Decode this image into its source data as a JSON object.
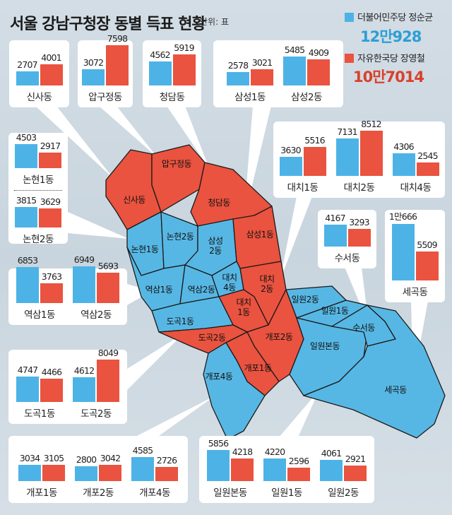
{
  "title": "서울 강남구청장 동별 득표 현황",
  "unit": "단위: 표",
  "legend": [
    {
      "party": "더불어민주당 정순균",
      "total": "12만928",
      "color": "#4db3e6"
    },
    {
      "party": "자유한국당 장영철",
      "total": "10만7014",
      "color": "#e9533f"
    }
  ],
  "chart_data": {
    "type": "bar",
    "title": "서울 강남구청장 동별 득표 현황",
    "unit": "표",
    "series": [
      "더불어민주당 정순균",
      "자유한국당 장영철"
    ],
    "cards": [
      {
        "groups": [
          {
            "name": "신사동",
            "values": [
              2707,
              4001
            ],
            "labels": [
              "2707",
              "4001"
            ]
          }
        ]
      },
      {
        "groups": [
          {
            "name": "압구정동",
            "values": [
              3072,
              7598
            ],
            "labels": [
              "3072",
              "7598"
            ]
          }
        ]
      },
      {
        "groups": [
          {
            "name": "청담동",
            "values": [
              4562,
              5919
            ],
            "labels": [
              "4562",
              "5919"
            ]
          }
        ]
      },
      {
        "groups": [
          {
            "name": "삼성1동",
            "values": [
              2578,
              3021
            ],
            "labels": [
              "2578",
              "3021"
            ]
          },
          {
            "name": "삼성2동",
            "values": [
              5485,
              4909
            ],
            "labels": [
              "5485",
              "4909"
            ]
          }
        ]
      },
      {
        "groups": [
          {
            "name": "대치1동",
            "values": [
              3630,
              5516
            ],
            "labels": [
              "3630",
              "5516"
            ]
          },
          {
            "name": "대치2동",
            "values": [
              7131,
              8512
            ],
            "labels": [
              "7131",
              "8512"
            ]
          },
          {
            "name": "대치4동",
            "values": [
              4306,
              2545
            ],
            "labels": [
              "4306",
              "2545"
            ]
          }
        ]
      },
      {
        "groups": [
          {
            "name": "논현1동",
            "values": [
              4503,
              2917
            ],
            "labels": [
              "4503",
              "2917"
            ]
          },
          {
            "name": "논현2동",
            "values": [
              3815,
              3629
            ],
            "labels": [
              "3815",
              "3629"
            ]
          }
        ]
      },
      {
        "groups": [
          {
            "name": "수서동",
            "values": [
              4167,
              3293
            ],
            "labels": [
              "4167",
              "3293"
            ]
          }
        ]
      },
      {
        "groups": [
          {
            "name": "세곡동",
            "values": [
              10666,
              5509
            ],
            "labels": [
              "1만666",
              "5509"
            ]
          }
        ]
      },
      {
        "groups": [
          {
            "name": "역삼1동",
            "values": [
              6853,
              3763
            ],
            "labels": [
              "6853",
              "3763"
            ]
          },
          {
            "name": "역삼2동",
            "values": [
              6949,
              5693
            ],
            "labels": [
              "6949",
              "5693"
            ]
          }
        ]
      },
      {
        "groups": [
          {
            "name": "도곡1동",
            "values": [
              4747,
              4466
            ],
            "labels": [
              "4747",
              "4466"
            ]
          },
          {
            "name": "도곡2동",
            "values": [
              4612,
              8049
            ],
            "labels": [
              "4612",
              "8049"
            ]
          }
        ]
      },
      {
        "groups": [
          {
            "name": "개포1동",
            "values": [
              3034,
              3105
            ],
            "labels": [
              "3034",
              "3105"
            ]
          },
          {
            "name": "개포2동",
            "values": [
              2800,
              3042
            ],
            "labels": [
              "2800",
              "3042"
            ]
          },
          {
            "name": "개포4동",
            "values": [
              4585,
              2726
            ],
            "labels": [
              "4585",
              "2726"
            ]
          }
        ]
      },
      {
        "groups": [
          {
            "name": "일원본동",
            "values": [
              5856,
              4218
            ],
            "labels": [
              "5856",
              "4218"
            ]
          },
          {
            "name": "일원1동",
            "values": [
              4220,
              2596
            ],
            "labels": [
              "4220",
              "2596"
            ]
          },
          {
            "name": "일원2동",
            "values": [
              4061,
              2921
            ],
            "labels": [
              "4061",
              "2921"
            ]
          }
        ]
      }
    ]
  },
  "map": {
    "regions": [
      {
        "label": "신사동",
        "winner": 1
      },
      {
        "label": "압구정동",
        "winner": 1
      },
      {
        "label": "청담동",
        "winner": 1
      },
      {
        "label": "논현1동",
        "winner": 0
      },
      {
        "label": "논현2동",
        "winner": 0
      },
      {
        "label": "삼성\n2동",
        "winner": 0
      },
      {
        "label": "삼성1동",
        "winner": 1
      },
      {
        "label": "역삼1동",
        "winner": 0
      },
      {
        "label": "역삼2동",
        "winner": 0
      },
      {
        "label": "대치\n4동",
        "winner": 0
      },
      {
        "label": "대치\n2동",
        "winner": 1
      },
      {
        "label": "대치\n1동",
        "winner": 1
      },
      {
        "label": "도곡1동",
        "winner": 0
      },
      {
        "label": "도곡2동",
        "winner": 1
      },
      {
        "label": "개포2동",
        "winner": 1
      },
      {
        "label": "개포1동",
        "winner": 1
      },
      {
        "label": "개포4동",
        "winner": 0
      },
      {
        "label": "일원2동",
        "winner": 0
      },
      {
        "label": "일원1동",
        "winner": 0
      },
      {
        "label": "일원본동",
        "winner": 0
      },
      {
        "label": "수서동",
        "winner": 0
      },
      {
        "label": "세곡동",
        "winner": 0
      }
    ]
  }
}
